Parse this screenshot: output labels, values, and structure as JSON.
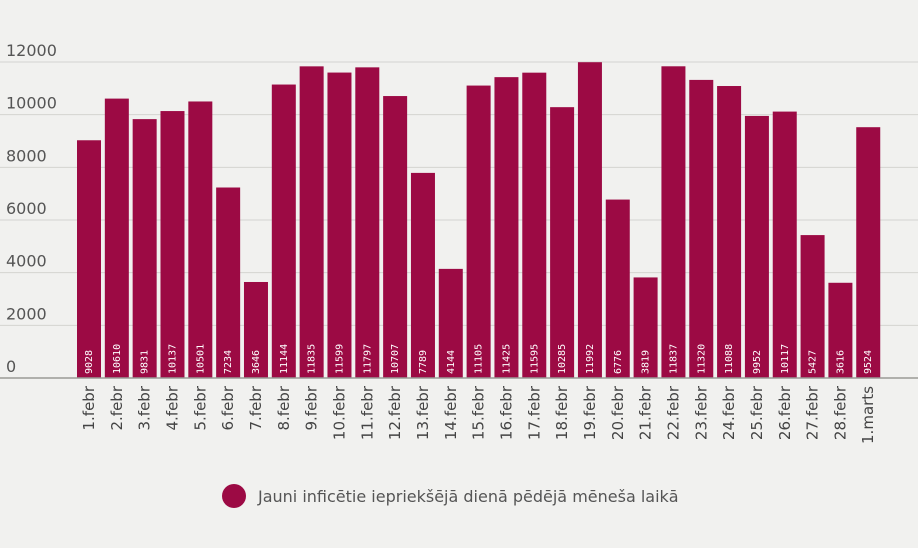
{
  "chart_data": {
    "type": "bar",
    "categories": [
      "1.febr",
      "2.febr",
      "3.febr",
      "4.febr",
      "5.febr",
      "6.febr",
      "7.febr",
      "8.febr",
      "9.febr",
      "10.febr",
      "11.febr",
      "12.febr",
      "13.febr",
      "14.febr",
      "15.febr",
      "16.febr",
      "17.febr",
      "18.febr",
      "19.febr",
      "20.febr",
      "21.febr",
      "22.febr",
      "23.febr",
      "24.febr",
      "25.febr",
      "26.febr",
      "27.febr",
      "28.febr",
      "1.marts"
    ],
    "series": [
      {
        "name": "Jauni inficētie iepriekšējā dienā pēdējā mēneša laikā",
        "values": [
          9028,
          10610,
          9831,
          10137,
          10501,
          7234,
          3646,
          11144,
          11835,
          11599,
          11797,
          10707,
          7789,
          4144,
          11105,
          11425,
          11595,
          10285,
          11992,
          6776,
          3819,
          11837,
          11320,
          11088,
          9952,
          10117,
          5427,
          3616,
          9524
        ],
        "color": "#9c0a44"
      }
    ],
    "yticks": [
      0,
      2000,
      4000,
      6000,
      8000,
      10000,
      12000
    ],
    "ylim": [
      0,
      12000
    ],
    "grid": true,
    "legend": "bottom-center"
  }
}
